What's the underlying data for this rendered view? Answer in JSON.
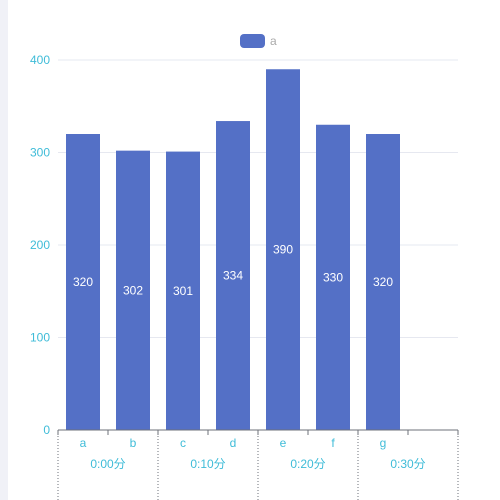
{
  "legend": {
    "label": "a",
    "color": "#5470c6"
  },
  "colors": {
    "bar": "#5470c6",
    "axis_text": "#3fbcd8",
    "grid": "#e6e8f0",
    "axis_line": "#6e7079",
    "bar_label": "#ffffff"
  },
  "chart_data": {
    "type": "bar",
    "categories": [
      "a",
      "b",
      "c",
      "d",
      "e",
      "f",
      "g"
    ],
    "series": [
      {
        "name": "a",
        "values": [
          320,
          302,
          301,
          334,
          390,
          330,
          320
        ]
      }
    ],
    "ylim": [
      0,
      400
    ],
    "yticks": [
      0,
      100,
      200,
      300,
      400
    ],
    "secondary_x_labels": [
      "0:00分",
      "0:10分",
      "0:20分",
      "0:30分"
    ],
    "grid": true,
    "legend_position": "top-center",
    "data_labels": "inside"
  }
}
